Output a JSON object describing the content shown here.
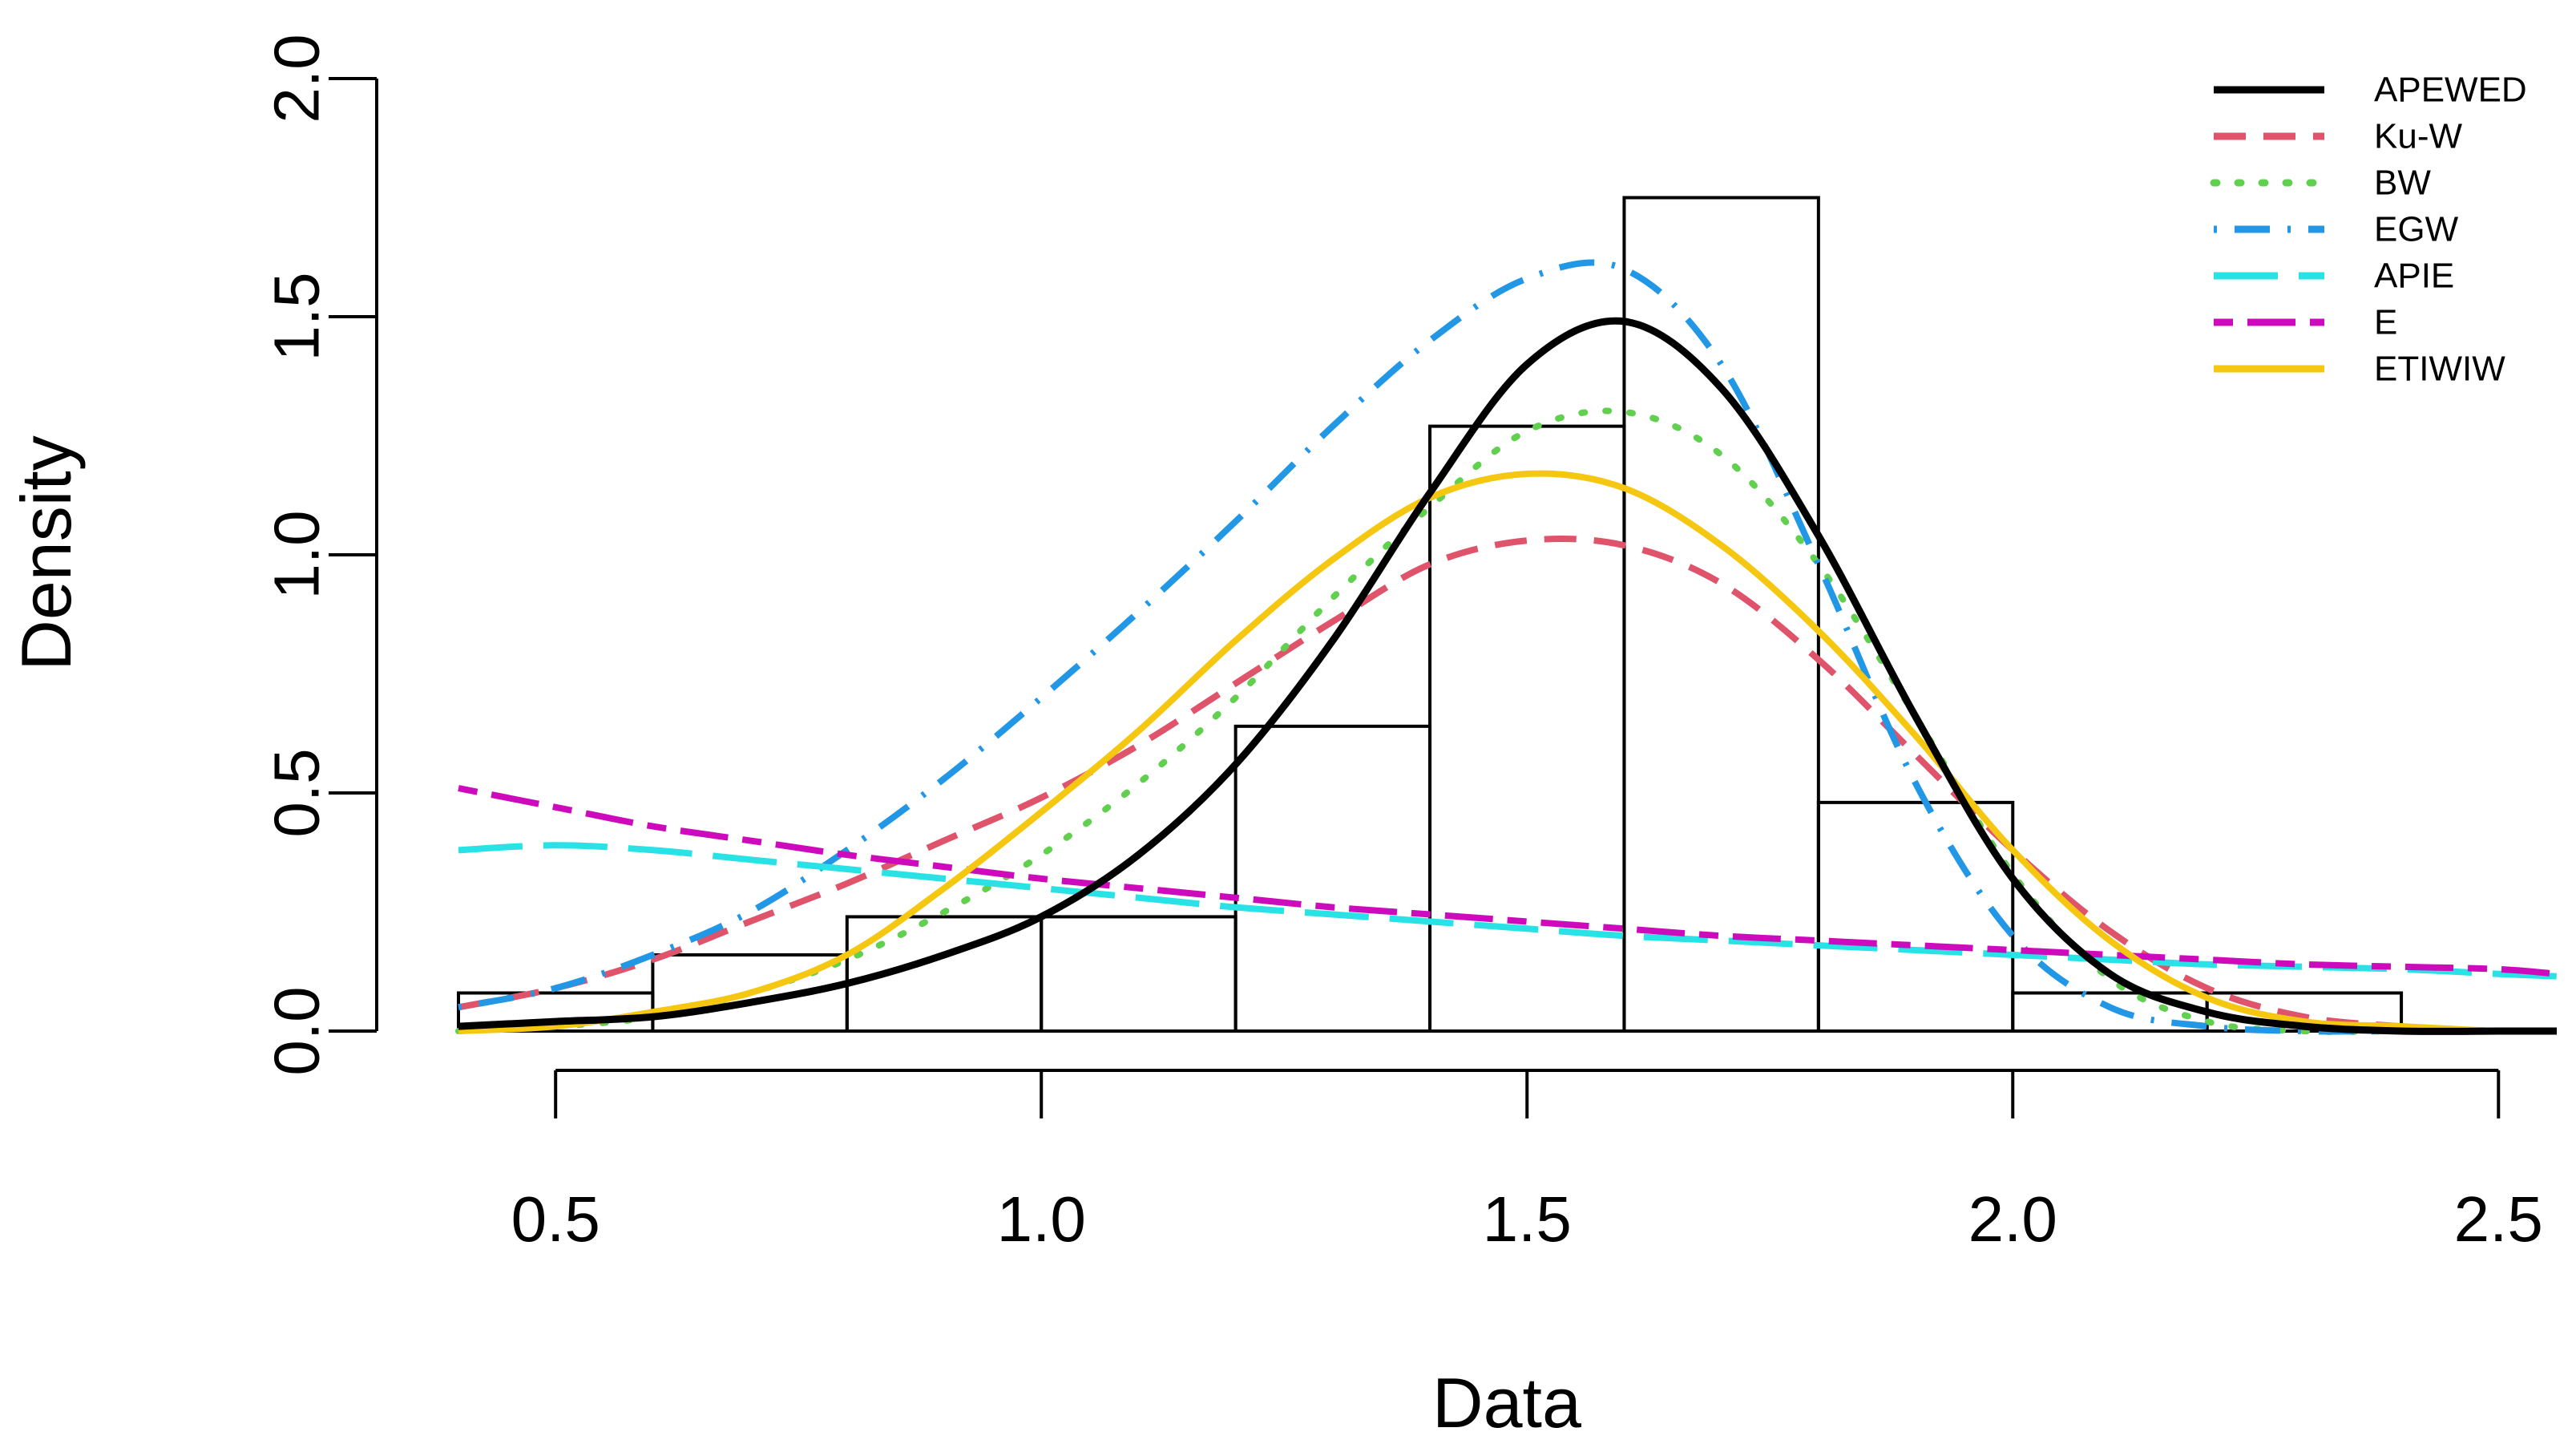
{
  "chart_data": {
    "type": "histogram-with-density-curves",
    "xlabel": "Data",
    "ylabel": "Density",
    "xlim": [
      0.4,
      2.56
    ],
    "ylim": [
      0,
      2.0
    ],
    "x_ticks": [
      0.5,
      1.0,
      1.5,
      2.0,
      2.5
    ],
    "x_tick_labels": [
      "0.5",
      "1.0",
      "1.5",
      "2.0",
      "2.5"
    ],
    "y_ticks": [
      0.0,
      0.5,
      1.0,
      1.5,
      2.0
    ],
    "y_tick_labels": [
      "0.0",
      "0.5",
      "1.0",
      "1.5",
      "2.0"
    ],
    "histogram": {
      "bins": [
        {
          "from": 0.4,
          "to": 0.6,
          "density": 0.08
        },
        {
          "from": 0.6,
          "to": 0.8,
          "density": 0.16
        },
        {
          "from": 0.8,
          "to": 1.0,
          "density": 0.24
        },
        {
          "from": 1.0,
          "to": 1.2,
          "density": 0.24
        },
        {
          "from": 1.2,
          "to": 1.4,
          "density": 0.64
        },
        {
          "from": 1.4,
          "to": 1.6,
          "density": 1.27
        },
        {
          "from": 1.6,
          "to": 1.8,
          "density": 1.75
        },
        {
          "from": 1.8,
          "to": 2.0,
          "density": 0.48
        },
        {
          "from": 2.0,
          "to": 2.2,
          "density": 0.08
        },
        {
          "from": 2.2,
          "to": 2.4,
          "density": 0.08
        }
      ]
    },
    "x": [
      0.4,
      0.5,
      0.6,
      0.7,
      0.8,
      0.9,
      1.0,
      1.1,
      1.2,
      1.3,
      1.4,
      1.5,
      1.6,
      1.7,
      1.8,
      1.9,
      2.0,
      2.1,
      2.2,
      2.3,
      2.4,
      2.5,
      2.56
    ],
    "series": [
      {
        "name": "APEWED",
        "color": "#000000",
        "dash": "solid",
        "values": [
          0.01,
          0.02,
          0.03,
          0.06,
          0.1,
          0.16,
          0.24,
          0.37,
          0.56,
          0.82,
          1.13,
          1.4,
          1.49,
          1.35,
          1.04,
          0.66,
          0.32,
          0.12,
          0.04,
          0.01,
          0.0,
          0.0,
          0.0
        ]
      },
      {
        "name": "Ku-W",
        "color": "#DF536B",
        "dash": "dashed",
        "values": [
          0.05,
          0.09,
          0.15,
          0.23,
          0.31,
          0.4,
          0.49,
          0.6,
          0.73,
          0.86,
          0.98,
          1.03,
          1.02,
          0.94,
          0.78,
          0.58,
          0.38,
          0.21,
          0.09,
          0.03,
          0.01,
          0.0,
          0.0
        ]
      },
      {
        "name": "BW",
        "color": "#61D04F",
        "dash": "dotted",
        "values": [
          0.0,
          0.01,
          0.03,
          0.08,
          0.15,
          0.25,
          0.37,
          0.52,
          0.7,
          0.91,
          1.1,
          1.26,
          1.3,
          1.21,
          0.98,
          0.66,
          0.33,
          0.11,
          0.02,
          0.0,
          0.0,
          0.0,
          0.0
        ]
      },
      {
        "name": "EGW",
        "color": "#2297E6",
        "dash": "dotdash",
        "values": [
          0.05,
          0.09,
          0.16,
          0.25,
          0.38,
          0.53,
          0.7,
          0.88,
          1.07,
          1.27,
          1.45,
          1.58,
          1.6,
          1.4,
          0.98,
          0.52,
          0.2,
          0.05,
          0.01,
          0.0,
          0.0,
          0.0,
          0.0
        ]
      },
      {
        "name": "APIE",
        "color": "#28E2E5",
        "dash": "longdash",
        "values": [
          0.38,
          0.39,
          0.38,
          0.36,
          0.34,
          0.32,
          0.3,
          0.28,
          0.26,
          0.245,
          0.23,
          0.215,
          0.2,
          0.19,
          0.18,
          0.17,
          0.16,
          0.15,
          0.14,
          0.135,
          0.13,
          0.12,
          0.115
        ]
      },
      {
        "name": "E",
        "color": "#CD0BBC",
        "dash": "twodash",
        "values": [
          0.51,
          0.47,
          0.43,
          0.4,
          0.37,
          0.345,
          0.32,
          0.3,
          0.28,
          0.26,
          0.245,
          0.23,
          0.215,
          0.2,
          0.19,
          0.18,
          0.17,
          0.16,
          0.15,
          0.14,
          0.135,
          0.13,
          0.12
        ]
      },
      {
        "name": "ETIWIW",
        "color": "#F5C710",
        "dash": "solid",
        "values": [
          0.0,
          0.01,
          0.04,
          0.08,
          0.16,
          0.3,
          0.46,
          0.63,
          0.82,
          0.99,
          1.12,
          1.17,
          1.14,
          1.02,
          0.84,
          0.62,
          0.38,
          0.19,
          0.07,
          0.02,
          0.01,
          0.0,
          0.0
        ]
      }
    ],
    "legend": {
      "position": "top-right",
      "entries": [
        "APEWED",
        "Ku-W",
        "BW",
        "EGW",
        "APIE",
        "E",
        "ETIWIW"
      ]
    }
  }
}
